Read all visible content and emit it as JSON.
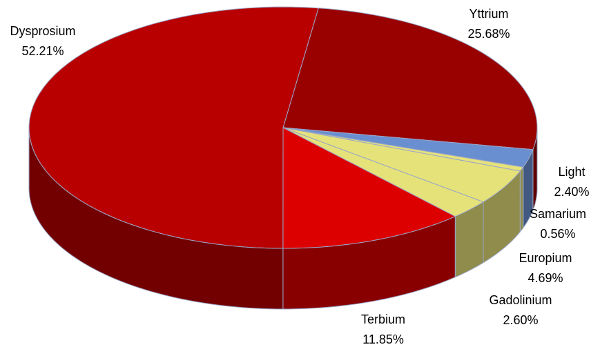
{
  "chart_data": {
    "type": "pie3d",
    "categories": [
      "Yttrium",
      "Light",
      "Samarium",
      "Europium",
      "Gadolinium",
      "Terbium",
      "Dysprosium"
    ],
    "values": [
      25.68,
      2.4,
      0.56,
      4.69,
      2.6,
      11.85,
      52.21
    ],
    "value_labels": [
      "25.68%",
      "2.40%",
      "0.56%",
      "4.69%",
      "2.60%",
      "11.85%",
      "52.21%"
    ],
    "colors": [
      "#990000",
      "#6a8fd0",
      "#e6e27a",
      "#e6e27a",
      "#e6e27a",
      "#dd0000",
      "#b80000"
    ]
  }
}
